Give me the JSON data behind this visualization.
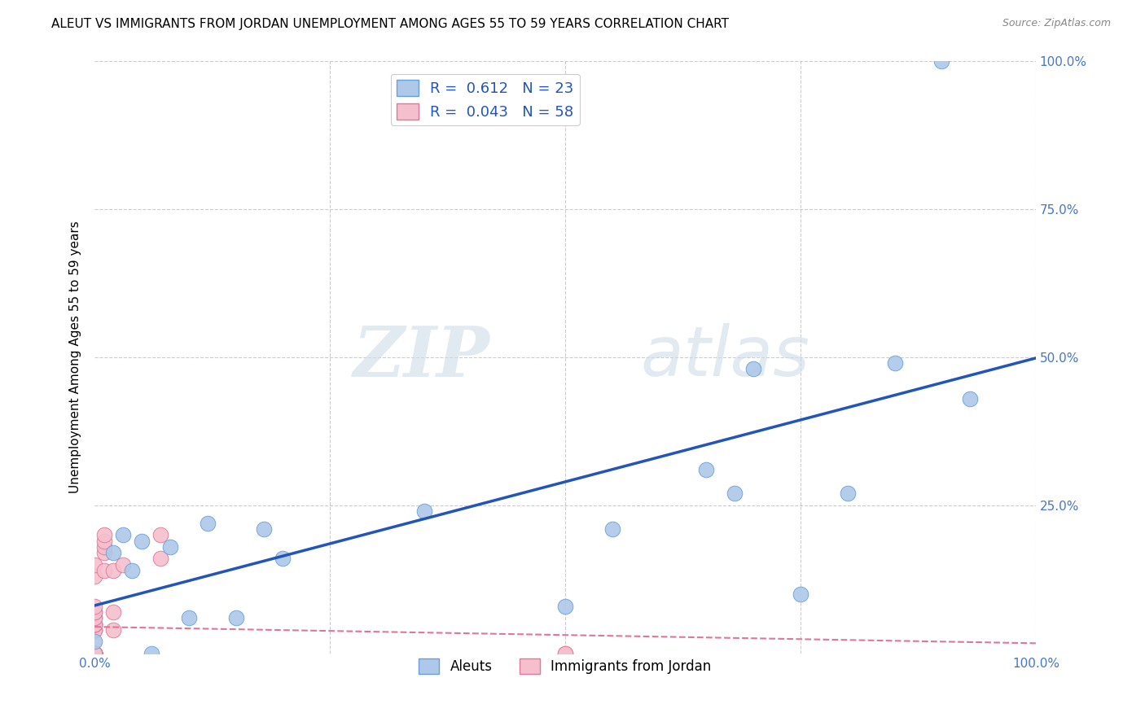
{
  "title": "ALEUT VS IMMIGRANTS FROM JORDAN UNEMPLOYMENT AMONG AGES 55 TO 59 YEARS CORRELATION CHART",
  "source": "Source: ZipAtlas.com",
  "ylabel": "Unemployment Among Ages 55 to 59 years",
  "xlim": [
    0,
    1.0
  ],
  "ylim": [
    0,
    1.0
  ],
  "watermark_zip": "ZIP",
  "watermark_atlas": "atlas",
  "legend_r_aleut": "0.612",
  "legend_n_aleut": "23",
  "legend_r_jordan": "0.043",
  "legend_n_jordan": "58",
  "aleut_color": "#adc8e8",
  "aleut_edge_color": "#6aa0d8",
  "jordan_color": "#f5bfce",
  "jordan_edge_color": "#e07898",
  "trendline_aleut_color": "#2255bb",
  "trendline_jordan_color": "#dd7799",
  "background_color": "#ffffff",
  "grid_color": "#cccccc",
  "right_tick_color": "#4477cc",
  "bottom_tick_color": "#4477cc",
  "aleut_points_x": [
    0.0,
    0.02,
    0.03,
    0.04,
    0.05,
    0.06,
    0.08,
    0.1,
    0.12,
    0.15,
    0.18,
    0.2,
    0.35,
    0.5,
    0.55,
    0.65,
    0.7,
    0.75,
    0.8,
    0.85,
    0.9,
    0.93,
    0.68
  ],
  "aleut_points_y": [
    0.02,
    0.17,
    0.2,
    0.14,
    0.19,
    0.0,
    0.18,
    0.06,
    0.22,
    0.06,
    0.21,
    0.16,
    0.24,
    0.08,
    0.21,
    0.31,
    0.48,
    0.1,
    0.27,
    0.49,
    1.0,
    0.43,
    0.27
  ],
  "jordan_points_x": [
    0.0,
    0.0,
    0.0,
    0.0,
    0.0,
    0.0,
    0.0,
    0.0,
    0.0,
    0.0,
    0.0,
    0.0,
    0.0,
    0.0,
    0.0,
    0.0,
    0.0,
    0.0,
    0.0,
    0.0,
    0.0,
    0.0,
    0.0,
    0.0,
    0.0,
    0.0,
    0.0,
    0.0,
    0.0,
    0.0,
    0.0,
    0.0,
    0.0,
    0.0,
    0.0,
    0.0,
    0.0,
    0.0,
    0.0,
    0.0,
    0.0,
    0.0,
    0.0,
    0.0,
    0.0,
    0.01,
    0.01,
    0.01,
    0.01,
    0.01,
    0.02,
    0.02,
    0.02,
    0.03,
    0.07,
    0.07,
    0.5,
    0.5
  ],
  "jordan_points_y": [
    0.0,
    0.0,
    0.0,
    0.0,
    0.0,
    0.0,
    0.0,
    0.0,
    0.0,
    0.0,
    0.0,
    0.0,
    0.0,
    0.0,
    0.0,
    0.0,
    0.0,
    0.0,
    0.0,
    0.0,
    0.0,
    0.0,
    0.0,
    0.0,
    0.0,
    0.0,
    0.0,
    0.0,
    0.0,
    0.0,
    0.0,
    0.04,
    0.04,
    0.04,
    0.05,
    0.05,
    0.05,
    0.05,
    0.06,
    0.06,
    0.07,
    0.07,
    0.08,
    0.13,
    0.15,
    0.17,
    0.18,
    0.19,
    0.2,
    0.14,
    0.04,
    0.07,
    0.14,
    0.15,
    0.16,
    0.2,
    0.0,
    0.0
  ],
  "marker_size": 180,
  "legend_fontsize": 13,
  "title_fontsize": 11,
  "axis_tick_fontsize": 11,
  "ylabel_fontsize": 11
}
